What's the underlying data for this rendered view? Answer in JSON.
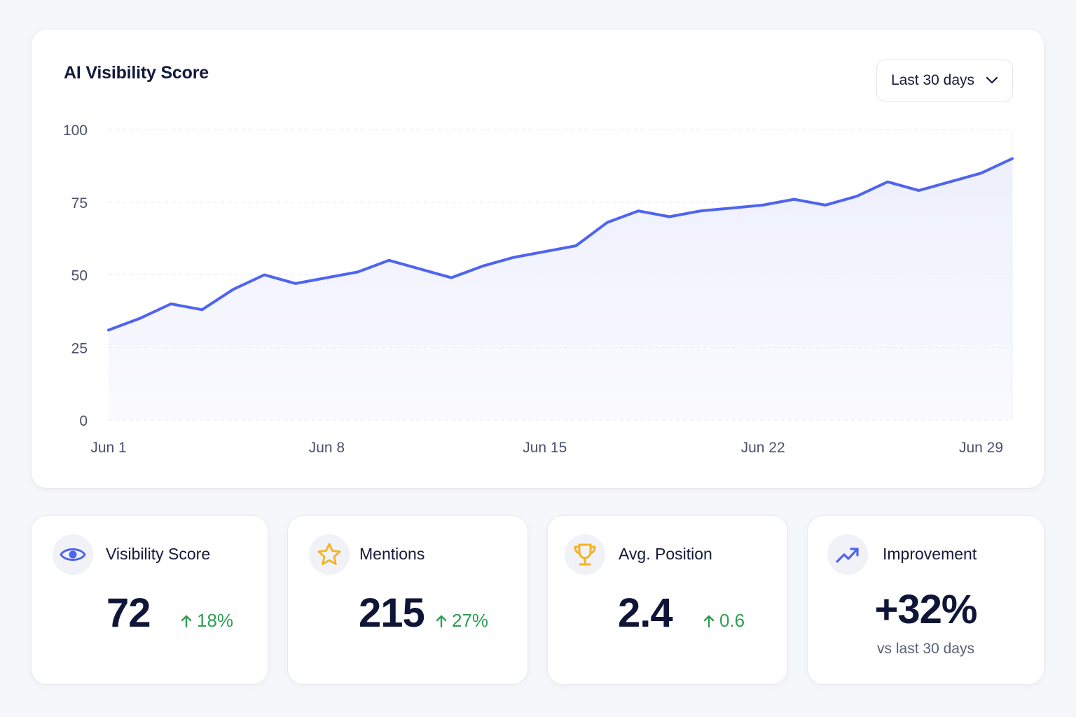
{
  "chart_card": {
    "title": "AI Visibility Score",
    "range_select": {
      "label": "Last 30 days",
      "icon": "chevron-down-icon"
    }
  },
  "chart_data": {
    "type": "area",
    "title": "AI Visibility Score",
    "xlabel": "",
    "ylabel": "",
    "ylim": [
      0,
      100
    ],
    "yticks": [
      "0",
      "25",
      "50",
      "75",
      "100"
    ],
    "xticks": [
      "Jun 1",
      "Jun 8",
      "Jun 15",
      "Jun 22",
      "Jun 29"
    ],
    "grid": true,
    "line_color": "#4f64f0",
    "fill_color": "#eceefc",
    "x": [
      "Jun 1",
      "Jun 2",
      "Jun 3",
      "Jun 4",
      "Jun 5",
      "Jun 6",
      "Jun 7",
      "Jun 8",
      "Jun 9",
      "Jun 10",
      "Jun 11",
      "Jun 12",
      "Jun 13",
      "Jun 14",
      "Jun 15",
      "Jun 16",
      "Jun 17",
      "Jun 18",
      "Jun 19",
      "Jun 20",
      "Jun 21",
      "Jun 22",
      "Jun 23",
      "Jun 24",
      "Jun 25",
      "Jun 26",
      "Jun 27",
      "Jun 28",
      "Jun 29",
      "Jun 30"
    ],
    "series": [
      {
        "values": [
          31,
          35,
          40,
          38,
          45,
          50,
          47,
          49,
          51,
          55,
          52,
          49,
          53,
          56,
          58,
          60,
          68,
          72,
          70,
          72,
          73,
          74,
          76,
          74,
          77,
          82,
          79,
          82,
          85,
          90
        ]
      }
    ]
  },
  "stats": [
    {
      "label": "Visibility Score",
      "value": "72",
      "delta": "18%",
      "icon": "eye-icon",
      "icon_color": "#4f64f0"
    },
    {
      "label": "Mentions",
      "value": "215",
      "delta": "27%",
      "icon": "star-icon",
      "icon_color": "#f4b321"
    },
    {
      "label": "Avg. Position",
      "value": "2.4",
      "delta": "0.6",
      "icon": "trophy-icon",
      "icon_color": "#f4b321"
    },
    {
      "label": "Improvement",
      "value": "+32%",
      "subtext": "vs last 30 days",
      "icon": "trend-up-icon",
      "icon_color": "#4f64f0"
    }
  ],
  "colors": {
    "accent": "#4f64f0",
    "positive": "#2e9e53",
    "text": "#141a3a"
  }
}
